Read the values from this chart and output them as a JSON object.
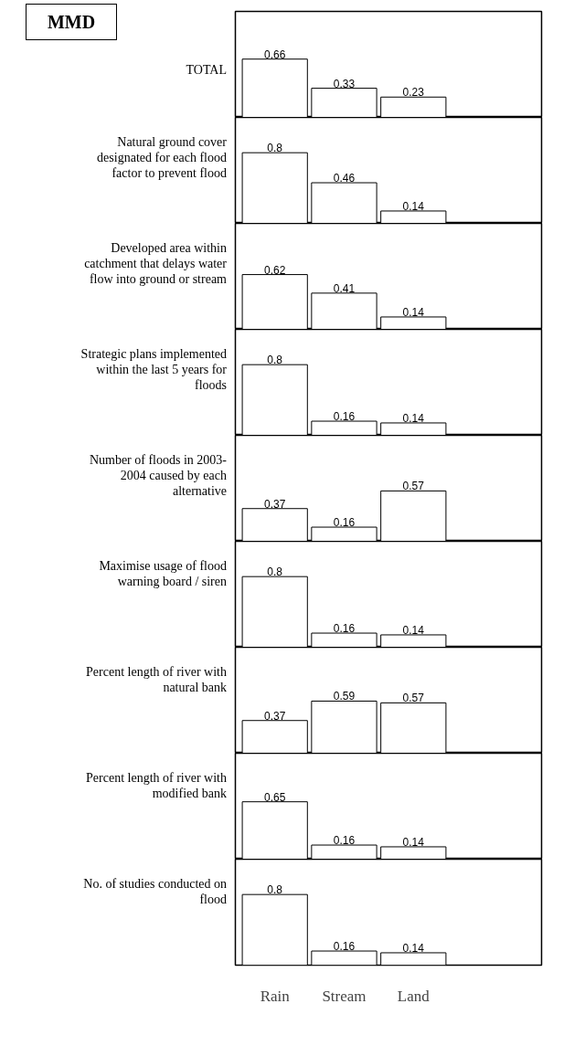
{
  "chart_data": [
    {
      "type": "bar",
      "annotations": [
        "MMD"
      ],
      "title": "TOTAL",
      "categories": [
        null,
        null,
        null
      ],
      "values": [
        0.66,
        0.33,
        0.23
      ],
      "color": "#ffffff",
      "ylim": [
        0,
        1.2
      ],
      "data_labels": true,
      "tick_labels": false
    },
    {
      "type": "bar",
      "title": "Natural ground cover designated for each flood factor to prevent flood",
      "categories": [
        null,
        null,
        null
      ],
      "values": [
        0.8,
        0.46,
        0.14
      ],
      "color": "#ffffff",
      "ylim": [
        0,
        1.2
      ],
      "data_labels": true,
      "tick_labels": false
    },
    {
      "type": "bar",
      "title": "Developed area within catchment that delays water flow into ground or stream",
      "categories": [
        null,
        null,
        null
      ],
      "values": [
        0.62,
        0.41,
        0.14
      ],
      "color": "#ffffff",
      "ylim": [
        0,
        1.2
      ],
      "data_labels": true,
      "tick_labels": false
    },
    {
      "type": "bar",
      "title": "Strategic plans implemented within the last 5 years for floods",
      "categories": [
        null,
        null,
        null
      ],
      "values": [
        0.8,
        0.16,
        0.14
      ],
      "color": "#ffffff",
      "ylim": [
        0,
        1.2
      ],
      "data_labels": true,
      "tick_labels": false
    },
    {
      "type": "bar",
      "title": "Number of floods in 2003-2004 caused by each alternative",
      "categories": [
        null,
        null,
        null
      ],
      "values": [
        0.37,
        0.16,
        0.57
      ],
      "color": "#ffffff",
      "ylim": [
        0,
        1.2
      ],
      "data_labels": true,
      "tick_labels": false
    },
    {
      "type": "bar",
      "title": "Maximise usage of flood warning board / siren",
      "categories": [
        null,
        null,
        null
      ],
      "values": [
        0.8,
        0.16,
        0.14
      ],
      "color": "#ffffff",
      "ylim": [
        0,
        1.2
      ],
      "data_labels": true,
      "tick_labels": false
    },
    {
      "type": "bar",
      "title": "Percent length of river with natural bank",
      "categories": [
        null,
        null,
        null
      ],
      "values": [
        0.37,
        0.59,
        0.57
      ],
      "color": "#ffffff",
      "ylim": [
        0,
        1.2
      ],
      "data_labels": true,
      "tick_labels": false
    },
    {
      "type": "bar",
      "title": "Percent length of river with modified bank",
      "categories": [
        null,
        null,
        null
      ],
      "values": [
        0.65,
        0.16,
        0.14
      ],
      "color": "#ffffff",
      "ylim": [
        0,
        1.2
      ],
      "data_labels": true,
      "tick_labels": false
    },
    {
      "type": "bar",
      "title": "No. of studies conducted on flood",
      "categories": [
        "Rain",
        "Stream",
        "Land"
      ],
      "values": [
        0.8,
        0.16,
        0.14
      ],
      "color": "#ffffff",
      "ylim": [
        0,
        1.2
      ],
      "data_labels": true,
      "tick_labels": "x"
    }
  ]
}
